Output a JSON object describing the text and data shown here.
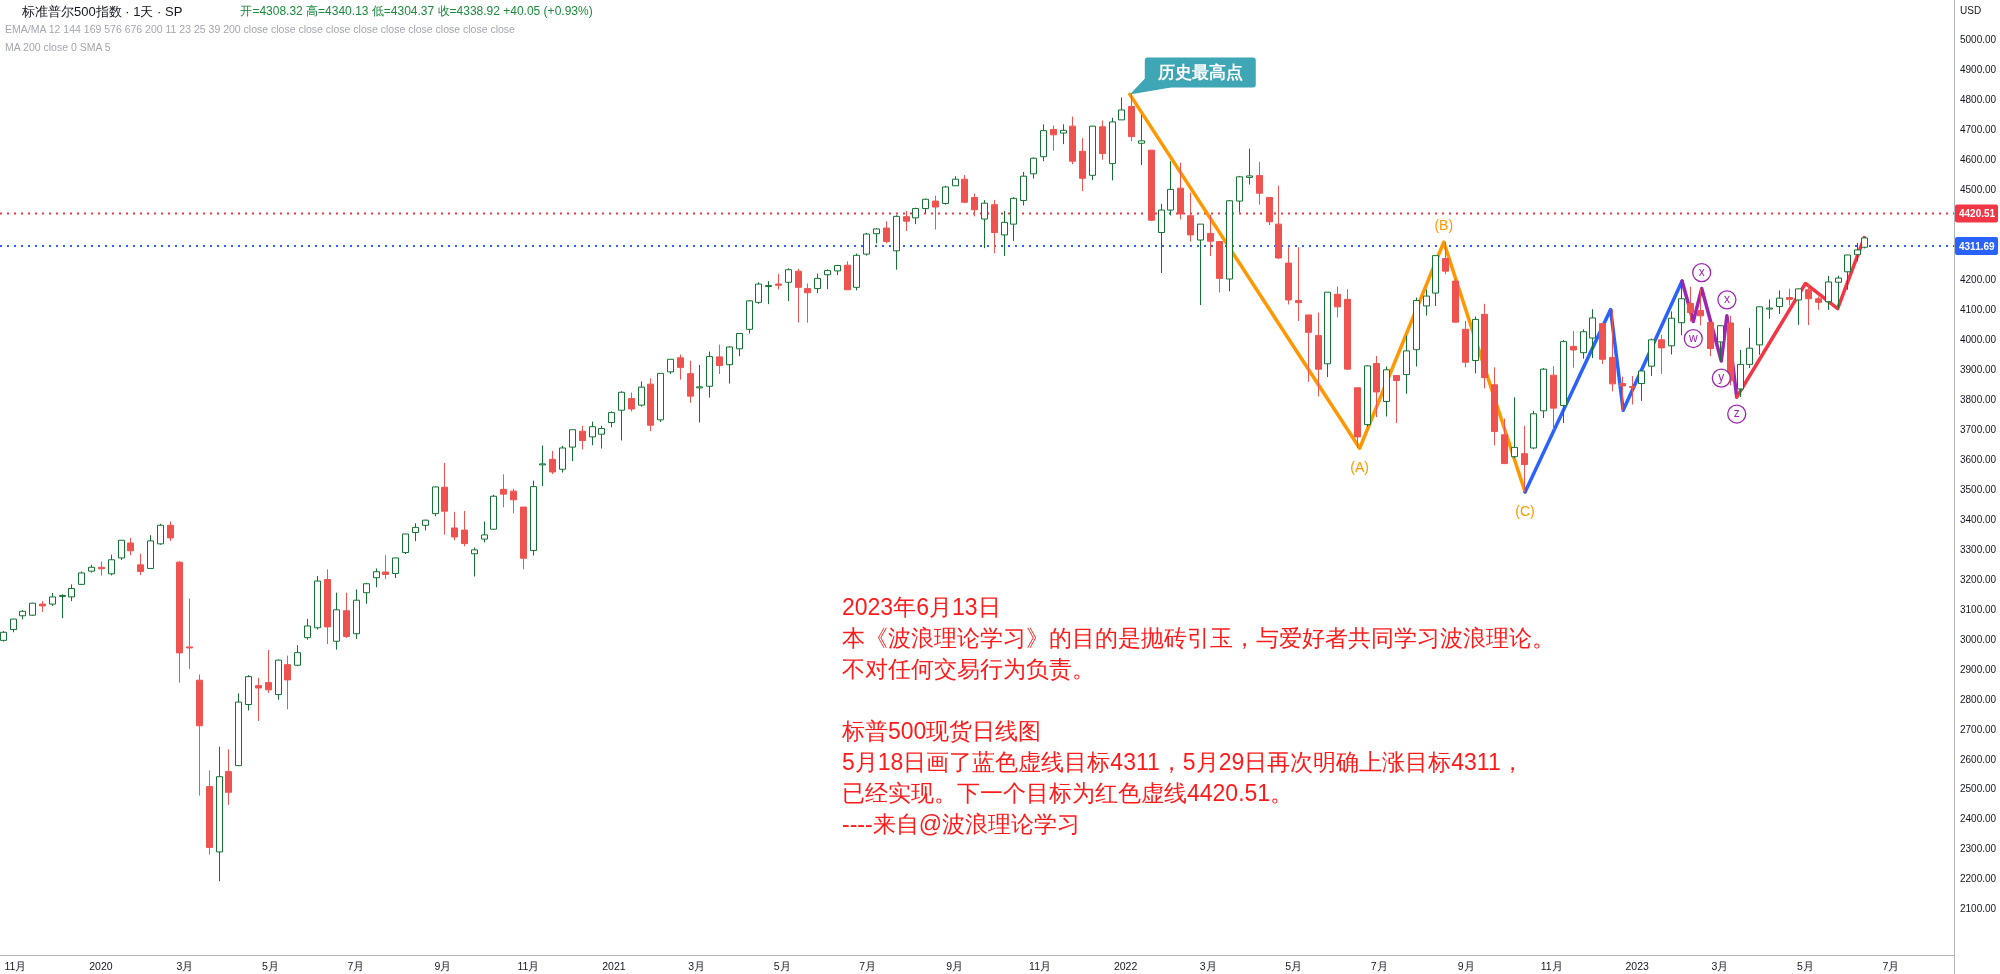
{
  "chart_data": {
    "type": "candlestick",
    "title": "标准普尔500指数 · 1天 · SP",
    "subtitle": "开=4308.32 高=4340.13 低=4304.37 收=4338.92 +40.05 (+0.93%)",
    "ylabel": "USD",
    "x": [
      "2019-10-23",
      "2019-10-30",
      "2019-11-06",
      "2019-11-13",
      "2019-11-20",
      "2019-11-27",
      "2019-12-04",
      "2019-12-11",
      "2019-12-18",
      "2019-12-25",
      "2020-01-01",
      "2020-01-08",
      "2020-01-15",
      "2020-01-22",
      "2020-01-29",
      "2020-02-05",
      "2020-02-12",
      "2020-02-19",
      "2020-02-26",
      "2020-03-04",
      "2020-03-11",
      "2020-03-18",
      "2020-03-25",
      "2020-04-01",
      "2020-04-08",
      "2020-04-15",
      "2020-04-22",
      "2020-04-29",
      "2020-05-06",
      "2020-05-13",
      "2020-05-20",
      "2020-05-27",
      "2020-06-03",
      "2020-06-10",
      "2020-06-17",
      "2020-06-24",
      "2020-07-01",
      "2020-07-08",
      "2020-07-15",
      "2020-07-22",
      "2020-07-29",
      "2020-08-05",
      "2020-08-12",
      "2020-08-19",
      "2020-08-26",
      "2020-09-02",
      "2020-09-09",
      "2020-09-16",
      "2020-09-23",
      "2020-09-30",
      "2020-10-07",
      "2020-10-14",
      "2020-10-21",
      "2020-10-28",
      "2020-11-04",
      "2020-11-11",
      "2020-11-18",
      "2020-11-25",
      "2020-12-02",
      "2020-12-09",
      "2020-12-16",
      "2020-12-23",
      "2020-12-30",
      "2021-01-06",
      "2021-01-13",
      "2021-01-20",
      "2021-01-27",
      "2021-02-03",
      "2021-02-10",
      "2021-02-17",
      "2021-02-24",
      "2021-03-03",
      "2021-03-10",
      "2021-03-17",
      "2021-03-24",
      "2021-03-31",
      "2021-04-07",
      "2021-04-14",
      "2021-04-21",
      "2021-04-28",
      "2021-05-05",
      "2021-05-12",
      "2021-05-19",
      "2021-05-26",
      "2021-06-02",
      "2021-06-09",
      "2021-06-16",
      "2021-06-23",
      "2021-06-30",
      "2021-07-07",
      "2021-07-14",
      "2021-07-21",
      "2021-07-28",
      "2021-08-04",
      "2021-08-11",
      "2021-08-18",
      "2021-08-25",
      "2021-09-01",
      "2021-09-08",
      "2021-09-15",
      "2021-09-22",
      "2021-09-29",
      "2021-10-06",
      "2021-10-13",
      "2021-10-20",
      "2021-10-27",
      "2021-11-03",
      "2021-11-10",
      "2021-11-17",
      "2021-11-24",
      "2021-12-01",
      "2021-12-08",
      "2021-12-15",
      "2021-12-22",
      "2021-12-29",
      "2022-01-05",
      "2022-01-12",
      "2022-01-19",
      "2022-01-26",
      "2022-02-02",
      "2022-02-09",
      "2022-02-16",
      "2022-02-23",
      "2022-03-02",
      "2022-03-09",
      "2022-03-16",
      "2022-03-23",
      "2022-03-30",
      "2022-04-06",
      "2022-04-13",
      "2022-04-20",
      "2022-04-27",
      "2022-05-04",
      "2022-05-11",
      "2022-05-18",
      "2022-05-25",
      "2022-06-01",
      "2022-06-08",
      "2022-06-15",
      "2022-06-22",
      "2022-06-29",
      "2022-07-06",
      "2022-07-13",
      "2022-07-20",
      "2022-07-27",
      "2022-08-03",
      "2022-08-10",
      "2022-08-17",
      "2022-08-24",
      "2022-08-31",
      "2022-09-07",
      "2022-09-14",
      "2022-09-21",
      "2022-09-28",
      "2022-10-05",
      "2022-10-12",
      "2022-10-19",
      "2022-10-26",
      "2022-11-02",
      "2022-11-09",
      "2022-11-16",
      "2022-11-23",
      "2022-11-30",
      "2022-12-07",
      "2022-12-14",
      "2022-12-21",
      "2022-12-28",
      "2023-01-04",
      "2023-01-11",
      "2023-01-18",
      "2023-01-25",
      "2023-02-01",
      "2023-02-08",
      "2023-02-15",
      "2023-02-22",
      "2023-03-01",
      "2023-03-08",
      "2023-03-15",
      "2023-03-22",
      "2023-03-29",
      "2023-04-05",
      "2023-04-12",
      "2023-04-19",
      "2023-04-26",
      "2023-05-03",
      "2023-05-10",
      "2023-05-17",
      "2023-05-24",
      "2023-05-31",
      "2023-06-07",
      "2023-06-12"
    ],
    "ohlc": [
      [
        2996,
        3027,
        2992,
        3023
      ],
      [
        3032,
        3067,
        3023,
        3067
      ],
      [
        3078,
        3097,
        3066,
        3093
      ],
      [
        3080,
        3121,
        3078,
        3120
      ],
      [
        3117,
        3127,
        3091,
        3111
      ],
      [
        3117,
        3154,
        3111,
        3141
      ],
      [
        3143,
        3150,
        3070,
        3146
      ],
      [
        3141,
        3183,
        3127,
        3169
      ],
      [
        3183,
        3226,
        3181,
        3221
      ],
      [
        3227,
        3248,
        3222,
        3240
      ],
      [
        3240,
        3259,
        3212,
        3235
      ],
      [
        3218,
        3282,
        3213,
        3265
      ],
      [
        3271,
        3330,
        3264,
        3330
      ],
      [
        3321,
        3338,
        3280,
        3295
      ],
      [
        3248,
        3285,
        3214,
        3226
      ],
      [
        3236,
        3347,
        3234,
        3328
      ],
      [
        3318,
        3385,
        3315,
        3380
      ],
      [
        3380,
        3393,
        3328,
        3338
      ],
      [
        3257,
        3260,
        2855,
        2954
      ],
      [
        2974,
        3136,
        2901,
        2972
      ],
      [
        2863,
        2882,
        2478,
        2711
      ],
      [
        2508,
        2562,
        2281,
        2305
      ],
      [
        2290,
        2641,
        2192,
        2541
      ],
      [
        2558,
        2632,
        2447,
        2489
      ],
      [
        2578,
        2819,
        2576,
        2790
      ],
      [
        2782,
        2880,
        2762,
        2875
      ],
      [
        2845,
        2871,
        2727,
        2837
      ],
      [
        2855,
        2964,
        2820,
        2831
      ],
      [
        2815,
        2932,
        2798,
        2930
      ],
      [
        2915,
        2945,
        2766,
        2864
      ],
      [
        2913,
        2980,
        2910,
        2955
      ],
      [
        3005,
        3068,
        2998,
        3044
      ],
      [
        3038,
        3211,
        3032,
        3194
      ],
      [
        3199,
        3233,
        2984,
        3041
      ],
      [
        2993,
        3155,
        2965,
        3098
      ],
      [
        3095,
        3155,
        3004,
        3009
      ],
      [
        3018,
        3166,
        3001,
        3130
      ],
      [
        3155,
        3188,
        3118,
        3185
      ],
      [
        3205,
        3236,
        3173,
        3225
      ],
      [
        3224,
        3280,
        3200,
        3216
      ],
      [
        3219,
        3272,
        3204,
        3271
      ],
      [
        3289,
        3352,
        3284,
        3351
      ],
      [
        3356,
        3387,
        3327,
        3373
      ],
      [
        3380,
        3399,
        3363,
        3397
      ],
      [
        3419,
        3509,
        3410,
        3508
      ],
      [
        3507,
        3588,
        3349,
        3427
      ],
      [
        3371,
        3425,
        3330,
        3341
      ],
      [
        3364,
        3428,
        3310,
        3319
      ],
      [
        3285,
        3306,
        3209,
        3298
      ],
      [
        3334,
        3393,
        3323,
        3348
      ],
      [
        3367,
        3482,
        3365,
        3477
      ],
      [
        3500,
        3550,
        3440,
        3484
      ],
      [
        3494,
        3502,
        3420,
        3465
      ],
      [
        3441,
        3441,
        3233,
        3270
      ],
      [
        3296,
        3529,
        3279,
        3509
      ],
      [
        3583,
        3646,
        3511,
        3585
      ],
      [
        3600,
        3628,
        3551,
        3558
      ],
      [
        3567,
        3645,
        3556,
        3638
      ],
      [
        3641,
        3699,
        3594,
        3699
      ],
      [
        3694,
        3712,
        3633,
        3663
      ],
      [
        3675,
        3726,
        3647,
        3709
      ],
      [
        3684,
        3712,
        3636,
        3703
      ],
      [
        3723,
        3760,
        3707,
        3756
      ],
      [
        3764,
        3827,
        3663,
        3824
      ],
      [
        3803,
        3823,
        3760,
        3768
      ],
      [
        3781,
        3860,
        3776,
        3841
      ],
      [
        3851,
        3870,
        3694,
        3714
      ],
      [
        3732,
        3887,
        3725,
        3887
      ],
      [
        3892,
        3935,
        3885,
        3934
      ],
      [
        3939,
        3950,
        3866,
        3907
      ],
      [
        3886,
        3929,
        3789,
        3811
      ],
      [
        3842,
        3915,
        3723,
        3842
      ],
      [
        3844,
        3960,
        3806,
        3943
      ],
      [
        3942,
        3983,
        3885,
        3913
      ],
      [
        3916,
        3978,
        3853,
        3975
      ],
      [
        3969,
        4020,
        3944,
        4020
      ],
      [
        4034,
        4131,
        4020,
        4129
      ],
      [
        4124,
        4191,
        4119,
        4185
      ],
      [
        4179,
        4195,
        4118,
        4180
      ],
      [
        4185,
        4219,
        4167,
        4181
      ],
      [
        4191,
        4238,
        4128,
        4233
      ],
      [
        4228,
        4236,
        4057,
        4174
      ],
      [
        4170,
        4187,
        4056,
        4156
      ],
      [
        4170,
        4220,
        4155,
        4204
      ],
      [
        4216,
        4234,
        4168,
        4230
      ],
      [
        4229,
        4249,
        4215,
        4247
      ],
      [
        4248,
        4261,
        4165,
        4166
      ],
      [
        4174,
        4287,
        4164,
        4281
      ],
      [
        4285,
        4356,
        4280,
        4352
      ],
      [
        4353,
        4372,
        4321,
        4369
      ],
      [
        4372,
        4394,
        4321,
        4327
      ],
      [
        4296,
        4415,
        4233,
        4411
      ],
      [
        4410,
        4429,
        4362,
        4395
      ],
      [
        4406,
        4440,
        4385,
        4437
      ],
      [
        4437,
        4470,
        4422,
        4468
      ],
      [
        4462,
        4480,
        4367,
        4442
      ],
      [
        4454,
        4513,
        4450,
        4509
      ],
      [
        4513,
        4545,
        4513,
        4535
      ],
      [
        4535,
        4549,
        4455,
        4458
      ],
      [
        4474,
        4487,
        4411,
        4433
      ],
      [
        4402,
        4465,
        4305,
        4455
      ],
      [
        4450,
        4466,
        4288,
        4357
      ],
      [
        4349,
        4429,
        4279,
        4391
      ],
      [
        4385,
        4475,
        4329,
        4471
      ],
      [
        4464,
        4559,
        4447,
        4545
      ],
      [
        4553,
        4608,
        4537,
        4605
      ],
      [
        4610,
        4718,
        4595,
        4697
      ],
      [
        4701,
        4714,
        4630,
        4683
      ],
      [
        4689,
        4718,
        4652,
        4698
      ],
      [
        4712,
        4744,
        4585,
        4595
      ],
      [
        4628,
        4672,
        4495,
        4538
      ],
      [
        4548,
        4713,
        4532,
        4712
      ],
      [
        4710,
        4731,
        4600,
        4621
      ],
      [
        4587,
        4740,
        4531,
        4726
      ],
      [
        4733,
        4808,
        4733,
        4766
      ],
      [
        4778,
        4818,
        4662,
        4677
      ],
      [
        4655,
        4749,
        4582,
        4663
      ],
      [
        4632,
        4632,
        4395,
        4398
      ],
      [
        4357,
        4453,
        4222,
        4432
      ],
      [
        4432,
        4595,
        4414,
        4501
      ],
      [
        4505,
        4590,
        4401,
        4419
      ],
      [
        4413,
        4490,
        4327,
        4349
      ],
      [
        4332,
        4385,
        4115,
        4385
      ],
      [
        4354,
        4416,
        4279,
        4328
      ],
      [
        4327,
        4327,
        4157,
        4204
      ],
      [
        4202,
        4465,
        4161,
        4463
      ],
      [
        4462,
        4546,
        4424,
        4543
      ],
      [
        4541,
        4637,
        4517,
        4546
      ],
      [
        4547,
        4593,
        4450,
        4488
      ],
      [
        4474,
        4474,
        4382,
        4393
      ],
      [
        4385,
        4513,
        4269,
        4272
      ],
      [
        4255,
        4308,
        4117,
        4132
      ],
      [
        4130,
        4308,
        4062,
        4123
      ],
      [
        4082,
        4082,
        3859,
        4024
      ],
      [
        4013,
        4090,
        3810,
        3901
      ],
      [
        3919,
        4158,
        3875,
        4158
      ],
      [
        4151,
        4177,
        4074,
        4109
      ],
      [
        4134,
        4168,
        3900,
        3901
      ],
      [
        3839,
        3839,
        3637,
        3675
      ],
      [
        3716,
        3914,
        3709,
        3912
      ],
      [
        3920,
        3945,
        3741,
        3825
      ],
      [
        3793,
        3910,
        3743,
        3899
      ],
      [
        3880,
        3880,
        3721,
        3863
      ],
      [
        3883,
        4013,
        3819,
        3962
      ],
      [
        3966,
        4140,
        3910,
        4130
      ],
      [
        4112,
        4167,
        4080,
        4145
      ],
      [
        4155,
        4280,
        4112,
        4280
      ],
      [
        4270,
        4325,
        4218,
        4228
      ],
      [
        4195,
        4203,
        4057,
        4058
      ],
      [
        4034,
        4062,
        3907,
        3924
      ],
      [
        3930,
        4077,
        3887,
        4067
      ],
      [
        4084,
        4119,
        3837,
        3873
      ],
      [
        3849,
        3907,
        3647,
        3693
      ],
      [
        3682,
        3736,
        3584,
        3586
      ],
      [
        3609,
        3807,
        3604,
        3640
      ],
      [
        3619,
        3712,
        3491,
        3583
      ],
      [
        3638,
        3762,
        3634,
        3752
      ],
      [
        3762,
        3905,
        3738,
        3901
      ],
      [
        3881,
        3911,
        3698,
        3771
      ],
      [
        3780,
        3998,
        3721,
        3993
      ],
      [
        3977,
        4028,
        3906,
        3965
      ],
      [
        3956,
        4034,
        3936,
        4026
      ],
      [
        4005,
        4101,
        3938,
        4072
      ],
      [
        4053,
        4053,
        3918,
        3934
      ],
      [
        3940,
        4100,
        3827,
        3852
      ],
      [
        3853,
        3876,
        3764,
        3845
      ],
      [
        3843,
        3878,
        3783,
        3840
      ],
      [
        3853,
        3895,
        3795,
        3895
      ],
      [
        3911,
        4003,
        3878,
        3999
      ],
      [
        3999,
        4016,
        3885,
        3972
      ],
      [
        3979,
        4094,
        3950,
        4071
      ],
      [
        4056,
        4195,
        4014,
        4136
      ],
      [
        4120,
        4176,
        4060,
        4090
      ],
      [
        4097,
        4170,
        4047,
        4079
      ],
      [
        4057,
        4057,
        3944,
        3970
      ],
      [
        3992,
        4048,
        3928,
        4046
      ],
      [
        4055,
        4079,
        3847,
        3862
      ],
      [
        3835,
        3965,
        3808,
        3917
      ],
      [
        3917,
        4039,
        3905,
        3971
      ],
      [
        3982,
        4110,
        3949,
        4109
      ],
      [
        4102,
        4134,
        4069,
        4105
      ],
      [
        4110,
        4164,
        4085,
        4138
      ],
      [
        4140,
        4170,
        4114,
        4134
      ],
      [
        4132,
        4170,
        4049,
        4169
      ],
      [
        4166,
        4187,
        4048,
        4136
      ],
      [
        4136,
        4144,
        4099,
        4124
      ],
      [
        4126,
        4212,
        4099,
        4192
      ],
      [
        4191,
        4213,
        4103,
        4205
      ],
      [
        4226,
        4283,
        4166,
        4282
      ],
      [
        4283,
        4322,
        4261,
        4299
      ],
      [
        4308,
        4340,
        4304,
        4339
      ]
    ],
    "colors": [
      "#137333",
      "#137333",
      "#137333",
      "#137333",
      "#ef5350",
      "#137333",
      "#137333",
      "#137333",
      "#137333",
      "#137333",
      "#ef5350",
      "#137333",
      "#137333",
      "#ef5350",
      "#ef5350",
      "#137333",
      "#137333",
      "#ef5350",
      "#ef5350",
      "#ef5350",
      "#ef5350",
      "#ef5350",
      "#137333",
      "#ef5350",
      "#137333",
      "#137333",
      "#ef5350",
      "#ef5350",
      "#137333",
      "#ef5350",
      "#137333",
      "#137333",
      "#137333",
      "#ef5350",
      "#137333",
      "#ef5350",
      "#137333",
      "#137333",
      "#137333",
      "#ef5350",
      "#137333",
      "#137333",
      "#137333",
      "#137333",
      "#137333",
      "#ef5350",
      "#ef5350",
      "#ef5350",
      "#137333",
      "#137333",
      "#137333",
      "#ef5350",
      "#ef5350",
      "#ef5350",
      "#137333",
      "#137333",
      "#ef5350",
      "#137333",
      "#137333",
      "#ef5350",
      "#137333",
      "#137333",
      "#137333",
      "#137333",
      "#ef5350",
      "#137333",
      "#ef5350",
      "#137333",
      "#137333",
      "#ef5350",
      "#ef5350",
      "#137333",
      "#137333",
      "#ef5350",
      "#137333",
      "#137333",
      "#137333",
      "#137333",
      "#137333",
      "#ef5350",
      "#137333",
      "#ef5350",
      "#ef5350",
      "#137333",
      "#137333",
      "#137333",
      "#ef5350",
      "#137333",
      "#137333",
      "#137333",
      "#ef5350",
      "#137333",
      "#ef5350",
      "#137333",
      "#137333",
      "#ef5350",
      "#137333",
      "#137333",
      "#ef5350",
      "#ef5350",
      "#137333",
      "#ef5350",
      "#137333",
      "#137333",
      "#137333",
      "#137333",
      "#137333",
      "#ef5350",
      "#137333",
      "#ef5350",
      "#ef5350",
      "#137333",
      "#ef5350",
      "#137333",
      "#137333",
      "#ef5350",
      "#137333",
      "#ef5350",
      "#137333",
      "#137333",
      "#ef5350",
      "#ef5350",
      "#137333",
      "#ef5350",
      "#ef5350",
      "#137333",
      "#137333",
      "#137333",
      "#ef5350",
      "#ef5350",
      "#ef5350",
      "#ef5350",
      "#ef5350",
      "#ef5350",
      "#ef5350",
      "#137333",
      "#ef5350",
      "#ef5350",
      "#ef5350",
      "#137333",
      "#ef5350",
      "#137333",
      "#ef5350",
      "#137333",
      "#137333",
      "#137333",
      "#137333",
      "#ef5350",
      "#ef5350",
      "#ef5350",
      "#137333",
      "#ef5350",
      "#ef5350",
      "#ef5350",
      "#137333",
      "#ef5350",
      "#137333",
      "#137333",
      "#ef5350",
      "#137333",
      "#ef5350",
      "#137333",
      "#137333",
      "#ef5350",
      "#ef5350",
      "#ef5350",
      "#ef5350",
      "#137333",
      "#137333",
      "#ef5350",
      "#137333",
      "#137333",
      "#ef5350",
      "#ef5350",
      "#ef5350",
      "#137333",
      "#ef5350",
      "#137333",
      "#137333",
      "#137333",
      "#137333",
      "#137333",
      "#ef5350",
      "#137333",
      "#ef5350",
      "#ef5350",
      "#137333",
      "#137333",
      "#137333",
      "#137333",
      "#137333"
    ],
    "series": [
      {
        "type": "line",
        "color": "#ff9800",
        "x": [
          "2022-01-04",
          "2022-06-17",
          "2022-08-16",
          "2022-10-13"
        ],
        "values": [
          4818,
          3637,
          4325,
          3491
        ]
      },
      {
        "type": "line",
        "color": "#2962ff",
        "x": [
          "2022-10-13",
          "2022-12-13",
          "2022-12-22",
          "2023-02-02"
        ],
        "values": [
          3491,
          4100,
          3764,
          4195
        ]
      },
      {
        "type": "line",
        "color": "#9c27b0",
        "x": [
          "2023-02-02",
          "2023-02-10",
          "2023-02-16",
          "2023-03-02",
          "2023-03-06",
          "2023-03-13"
        ],
        "values": [
          4195,
          4060,
          4170,
          3928,
          4079,
          3808
        ]
      },
      {
        "type": "line",
        "color": "#f23645",
        "x": [
          "2023-03-13",
          "2023-05-01",
          "2023-05-24",
          "2023-06-12"
        ],
        "values": [
          3808,
          4187,
          4103,
          4340
        ]
      }
    ],
    "xlim": [
      "2019-10-21",
      "2023-08-15"
    ],
    "xticks": [
      {
        "value": "2019-11-01",
        "label": "11月"
      },
      {
        "value": "2020-01-01",
        "label": "2020"
      },
      {
        "value": "2020-03-01",
        "label": "3月"
      },
      {
        "value": "2020-05-01",
        "label": "5月"
      },
      {
        "value": "2020-07-01",
        "label": "7月"
      },
      {
        "value": "2020-09-01",
        "label": "9月"
      },
      {
        "value": "2020-11-01",
        "label": "11月"
      },
      {
        "value": "2021-01-01",
        "label": "2021"
      },
      {
        "value": "2021-03-01",
        "label": "3月"
      },
      {
        "value": "2021-05-01",
        "label": "5月"
      },
      {
        "value": "2021-07-01",
        "label": "7月"
      },
      {
        "value": "2021-09-01",
        "label": "9月"
      },
      {
        "value": "2021-11-01",
        "label": "11月"
      },
      {
        "value": "2022-01-01",
        "label": "2022"
      },
      {
        "value": "2022-03-01",
        "label": "3月"
      },
      {
        "value": "2022-05-01",
        "label": "5月"
      },
      {
        "value": "2022-07-01",
        "label": "7月"
      },
      {
        "value": "2022-09-01",
        "label": "9月"
      },
      {
        "value": "2022-11-01",
        "label": "11月"
      },
      {
        "value": "2023-01-01",
        "label": "2023"
      },
      {
        "value": "2023-03-01",
        "label": "3月"
      },
      {
        "value": "2023-05-01",
        "label": "5月"
      },
      {
        "value": "2023-07-01",
        "label": "7月"
      }
    ],
    "ylim": [
      1946,
      5133
    ],
    "yticks": [
      {
        "value": 2100,
        "label": "2100.00"
      },
      {
        "value": 2200,
        "label": "2200.00"
      },
      {
        "value": 2300,
        "label": "2300.00"
      },
      {
        "value": 2400,
        "label": "2400.00"
      },
      {
        "value": 2500,
        "label": "2500.00"
      },
      {
        "value": 2600,
        "label": "2600.00"
      },
      {
        "value": 2700,
        "label": "2700.00"
      },
      {
        "value": 2800,
        "label": "2800.00"
      },
      {
        "value": 2900,
        "label": "2900.00"
      },
      {
        "value": 3000,
        "label": "3000.00"
      },
      {
        "value": 3100,
        "label": "3100.00"
      },
      {
        "value": 3200,
        "label": "3200.00"
      },
      {
        "value": 3300,
        "label": "3300.00"
      },
      {
        "value": 3400,
        "label": "3400.00"
      },
      {
        "value": 3500,
        "label": "3500.00"
      },
      {
        "value": 3600,
        "label": "3600.00"
      },
      {
        "value": 3700,
        "label": "3700.00"
      },
      {
        "value": 3800,
        "label": "3800.00"
      },
      {
        "value": 3900,
        "label": "3900.00"
      },
      {
        "value": 4000,
        "label": "4000.00"
      },
      {
        "value": 4100,
        "label": "4100.00"
      },
      {
        "value": 4200,
        "label": "4200.00"
      },
      {
        "value": 4500,
        "label": "4500.00"
      },
      {
        "value": 4600,
        "label": "4600.00"
      },
      {
        "value": 4700,
        "label": "4700.00"
      },
      {
        "value": 4800,
        "label": "4800.00"
      },
      {
        "value": 4900,
        "label": "4900.00"
      },
      {
        "value": 5000,
        "label": "5000.00"
      }
    ],
    "ref_lines": [
      {
        "axis": "y",
        "value": 4420.51,
        "label": "4420.51",
        "color": "#f23645",
        "line_style": "dotted"
      },
      {
        "axis": "y",
        "value": 4311.69,
        "label": "4311.69",
        "color": "#2962ff",
        "line_style": "dotted"
      }
    ],
    "annotations": [
      "EMA/MA 12 144 169 576 676 200 11 23 25 39 200 close close close close close close close close close close",
      "MA 200 close 0 SMA 5",
      {
        "text": "历史最高点",
        "x": "2022-01-04",
        "y": 4818
      },
      {
        "text": "(A)",
        "x": "2022-06-17",
        "y": 3637
      },
      {
        "text": "(B)",
        "x": "2022-08-16",
        "y": 4325
      },
      {
        "text": "(C)",
        "x": "2022-10-13",
        "y": 3491
      },
      {
        "text": "w",
        "x": "2023-02-10",
        "y": 4060
      },
      {
        "text": "x",
        "x": "2023-02-16",
        "y": 4170
      },
      {
        "text": "y",
        "x": "2023-03-02",
        "y": 3928
      },
      {
        "text": "x",
        "x": "2023-03-06",
        "y": 4079
      },
      {
        "text": "z",
        "x": "2023-03-13",
        "y": 3808
      },
      "2023年6月13日",
      "本《波浪理论学习》的目的是抛砖引玉，与爱好者共同学习波浪理论。",
      "不对任何交易行为负责。",
      "标普500现货日线图",
      "5月18日画了蓝色虚线目标4311，5月29日再次明确上涨目标4311，",
      "已经实现。下一个目标为红色虚线4420.51。",
      "----来自@波浪理论学习"
    ]
  }
}
